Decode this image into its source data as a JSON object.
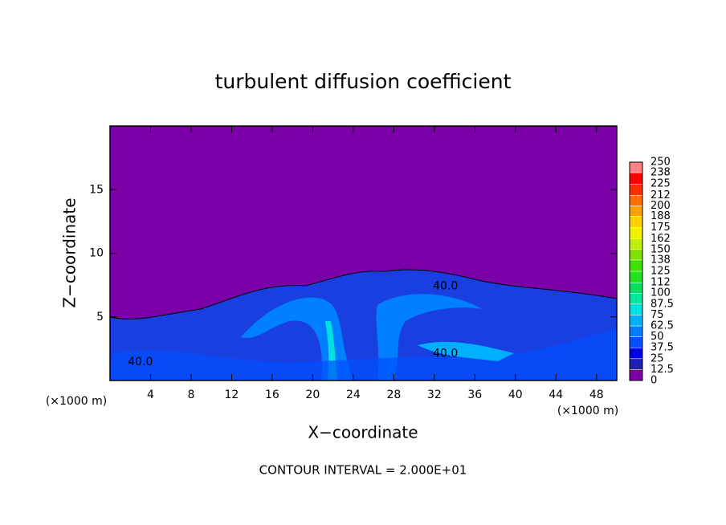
{
  "chart_data": {
    "type": "contour",
    "title": "turbulent diffusion coefficient",
    "xlabel": "X−coordinate",
    "ylabel": "Z−coordinate",
    "x_unit_label": "(×1000 m)",
    "y_unit_label": "(×1000 m)",
    "note": "CONTOUR INTERVAL = 2.000E+01",
    "xlim": [
      0,
      50
    ],
    "xticks": [
      4,
      8,
      12,
      16,
      20,
      24,
      28,
      32,
      36,
      40,
      44,
      48
    ],
    "ylim": [
      0,
      20
    ],
    "yticks": [
      5,
      10,
      15
    ],
    "contour_labels": [
      {
        "value": 40,
        "label": "40.0",
        "x": 33.1,
        "y": 7.4
      },
      {
        "value": 40,
        "label": "40.0",
        "x": 33.1,
        "y": 2.1
      },
      {
        "value": 40,
        "label": "40.0",
        "x": 3.0,
        "y": 1.45
      }
    ],
    "colorbar": {
      "lim": [
        0,
        250
      ],
      "ticks": [
        0,
        12.5,
        25,
        37.5,
        50,
        62.5,
        75,
        87.5,
        100,
        112,
        125,
        138,
        150,
        162,
        175,
        188,
        200,
        212,
        225,
        238,
        250
      ],
      "colors": [
        "#7c00a8",
        "#1e1eb4",
        "#0000e6",
        "#0050ff",
        "#0080ff",
        "#00b0ff",
        "#00e0e0",
        "#00e8a0",
        "#00e060",
        "#20e020",
        "#40e000",
        "#80e000",
        "#c0f000",
        "#f0f000",
        "#ffd000",
        "#ffa000",
        "#ff7000",
        "#ff3000",
        "#ff0000",
        "#ff8080"
      ]
    }
  }
}
